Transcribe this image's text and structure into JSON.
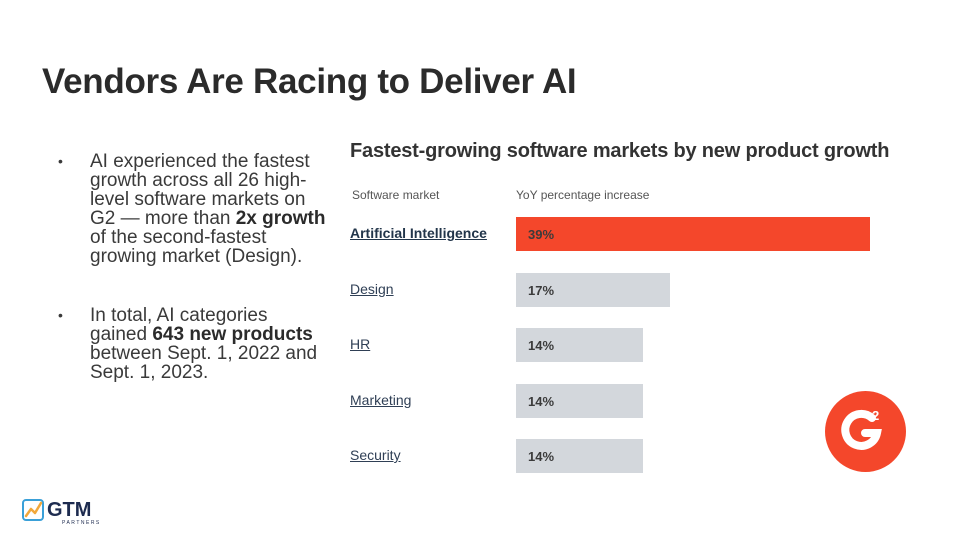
{
  "slide": {
    "title": "Vendors Are Racing to Deliver AI"
  },
  "bullets": [
    {
      "before": "AI experienced the fastest growth across all 26 high-level software markets on G2 — more than ",
      "bold": "2x growth",
      "after": " of the second-fastest growing market (Design)."
    },
    {
      "before": "In total, AI categories gained ",
      "bold": "643 new products",
      "after": " between Sept. 1, 2022 and Sept. 1, 2023."
    }
  ],
  "chart_data": {
    "type": "bar",
    "orientation": "horizontal",
    "title": "Fastest-growing software markets by new product growth",
    "column_headers": {
      "category": "Software market",
      "value": "YoY percentage increase"
    },
    "categories": [
      "Artificial Intelligence",
      "Design",
      "HR",
      "Marketing",
      "Security"
    ],
    "values": [
      39,
      17,
      14,
      14,
      14
    ],
    "value_labels": [
      "39%",
      "17%",
      "14%",
      "14%",
      "14%"
    ],
    "unit": "%",
    "highlight_category": "Artificial Intelligence",
    "colors": {
      "highlight": "#f4472b",
      "default": "#d3d7dc"
    },
    "xlim": [
      0,
      40
    ],
    "grid": false,
    "legend": "none"
  },
  "logos": {
    "g2": {
      "text": "G",
      "superscript": "2",
      "color": "#f4472b"
    },
    "gtm": {
      "text": "GTM",
      "subtext": "PARTNERS",
      "color": "#1d2b4f",
      "accent": "#3aa0d8"
    }
  }
}
